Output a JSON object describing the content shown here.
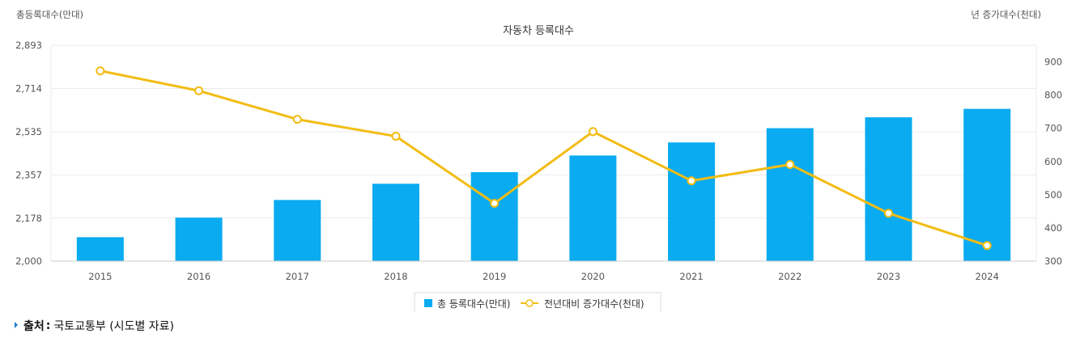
{
  "colors": {
    "bar": "#0aabf0",
    "line": "#f2bc13",
    "grid": "#ebebeb",
    "axis": "#cccccc"
  },
  "source": {
    "label": "출처",
    "text": "국토교통부 (시도별 자료)"
  },
  "chart_data": {
    "type": "bar",
    "title": "자동차 등록대수",
    "ylabel_left": "총등록대수(만대)",
    "ylabel_right": "년 증가대수(천대)",
    "categories": [
      "2015",
      "2016",
      "2017",
      "2018",
      "2019",
      "2020",
      "2021",
      "2022",
      "2023",
      "2024"
    ],
    "left_axis": {
      "min": 2000,
      "max": 2893,
      "ticks": [
        "2,893",
        "2,714",
        "2,535",
        "2,357",
        "2,178",
        "2,000"
      ],
      "tick_values": [
        2893,
        2714,
        2535,
        2357,
        2178,
        2000
      ]
    },
    "right_axis": {
      "min": 300,
      "max": 950,
      "ticks": [
        "900",
        "800",
        "700",
        "600",
        "500",
        "400",
        "300"
      ],
      "tick_values": [
        900,
        800,
        700,
        600,
        500,
        400,
        300
      ]
    },
    "series": [
      {
        "name": "총 등록대수(만대)",
        "type": "bar",
        "axis": "left",
        "values": [
          2099,
          2180,
          2253,
          2320,
          2368,
          2437,
          2491,
          2550,
          2595,
          2630
        ]
      },
      {
        "name": "전년대비 증가대수(천대)",
        "type": "line",
        "axis": "right",
        "values": [
          873,
          813,
          727,
          676,
          474,
          690,
          542,
          591,
          444,
          347
        ]
      }
    ],
    "grid": true,
    "legend_position": "bottom-center"
  }
}
